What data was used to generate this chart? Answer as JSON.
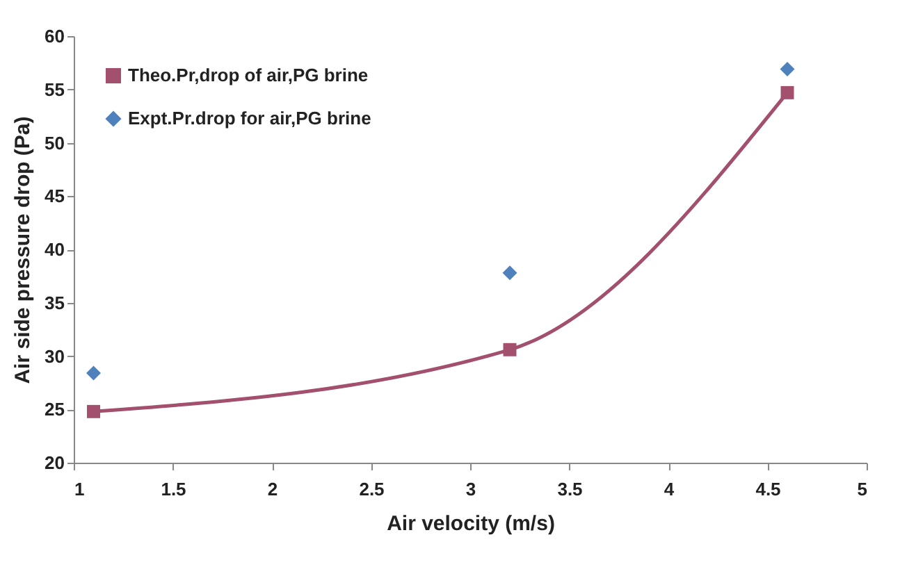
{
  "chart_data": {
    "type": "line",
    "xlabel": "Air velocity (m/s)",
    "ylabel": "Air side pressure drop (Pa)",
    "xlim": [
      1,
      5
    ],
    "xticks": [
      1,
      1.5,
      2,
      2.5,
      3,
      3.5,
      4,
      4.5,
      5
    ],
    "ylim": [
      20,
      60
    ],
    "yticks": [
      20,
      25,
      30,
      35,
      40,
      45,
      50,
      55,
      60
    ],
    "grid": false,
    "legend": "top left",
    "series": [
      {
        "name": "Theo.Pr,drop of air,PG  brine",
        "color": "#a34f6e",
        "marker": "square",
        "line_style": "solid",
        "x": [
          1.1,
          3.2,
          4.6
        ],
        "values": [
          24.8,
          30.6,
          54.7
        ]
      },
      {
        "name": "Expt.Pr.drop for air,PG brine",
        "type": "scatter",
        "color": "#4f81bd",
        "marker": "diamond",
        "x": [
          1.1,
          3.2,
          4.6
        ],
        "values": [
          28.4,
          37.8,
          56.9
        ]
      }
    ]
  }
}
